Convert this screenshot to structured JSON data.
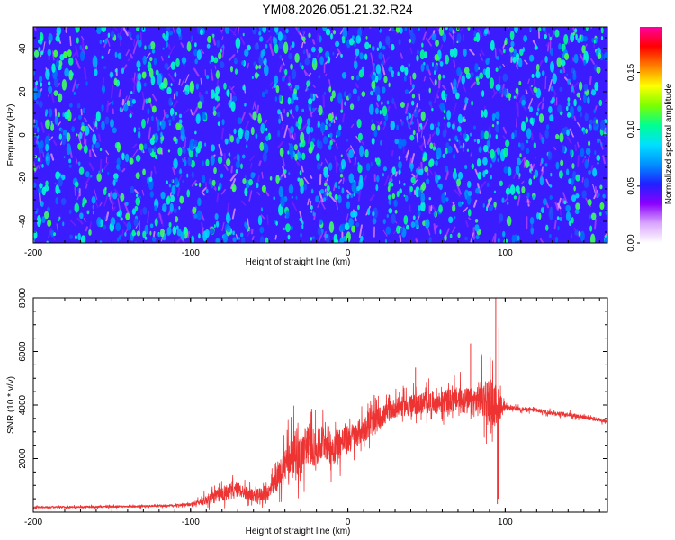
{
  "page": {
    "title": "YM08.2026.051.21.32.R24"
  },
  "chart_data": [
    {
      "type": "heatmap",
      "title": "YM08.2026.051.21.32.R24",
      "xlabel": "Height of straight line (km)",
      "ylabel": "Frequency (Hz)",
      "xlim": [
        -200,
        165
      ],
      "ylim": [
        -50,
        50
      ],
      "x_ticks": [
        -200,
        -100,
        0,
        100
      ],
      "x_tick_labels": [
        "-200",
        "-100",
        "0",
        "100"
      ],
      "y_ticks": [
        -40,
        -20,
        0,
        20,
        40
      ],
      "y_tick_labels": [
        "-40",
        "-20",
        "0",
        "20",
        "40"
      ],
      "colorbar": {
        "label": "Normalized spectral amplitude",
        "range": [
          0,
          0.19
        ],
        "ticks": [
          0,
          0.05,
          0.1,
          0.15
        ],
        "tick_labels": [
          "0.00",
          "0.05",
          "0.10",
          "0.15"
        ],
        "colors": [
          "#ffffff",
          "#d9a6ff",
          "#8a00ff",
          "#2020ff",
          "#0090ff",
          "#00e0ff",
          "#00ff90",
          "#7cff00",
          "#ffff00",
          "#ff8000",
          "#ff0000",
          "#ff00a0"
        ]
      },
      "background_color": "#3a1cff"
    },
    {
      "type": "line",
      "title": "",
      "xlabel": "Height of straight line (km)",
      "ylabel": "SNR (10 * v/v)",
      "xlim": [
        -200,
        165
      ],
      "ylim": [
        0,
        8000
      ],
      "x_ticks": [
        -200,
        -100,
        0,
        100
      ],
      "x_tick_labels": [
        "-200",
        "-100",
        "0",
        "100"
      ],
      "y_ticks": [
        2000,
        4000,
        6000,
        8000
      ],
      "y_tick_labels": [
        "2000",
        "4000",
        "6000",
        "8000"
      ],
      "line_color": "#ee3333",
      "series": [
        {
          "name": "SNR",
          "x": [
            -200,
            -180,
            -160,
            -140,
            -120,
            -100,
            -90,
            -80,
            -70,
            -60,
            -50,
            -45,
            -40,
            -35,
            -30,
            -25,
            -20,
            -15,
            -10,
            -5,
            0,
            5,
            10,
            15,
            20,
            25,
            30,
            40,
            50,
            60,
            70,
            80,
            85,
            90,
            95,
            100,
            110,
            120,
            130,
            140,
            150,
            160,
            165
          ],
          "y": [
            180,
            190,
            200,
            210,
            230,
            280,
            450,
            700,
            850,
            600,
            750,
            1200,
            1800,
            2300,
            2100,
            2600,
            2300,
            2700,
            2400,
            2600,
            2700,
            2900,
            3100,
            3300,
            3500,
            3700,
            3900,
            4000,
            4100,
            4100,
            4200,
            4100,
            4300,
            4200,
            4000,
            3900,
            3850,
            3800,
            3700,
            3650,
            3550,
            3450,
            3400
          ]
        }
      ],
      "noise_amplitude": [
        60,
        60,
        60,
        60,
        60,
        80,
        300,
        500,
        450,
        350,
        500,
        700,
        1200,
        1300,
        1400,
        1300,
        1100,
        1200,
        1100,
        1000,
        900,
        800,
        800,
        800,
        700,
        600,
        600,
        600,
        700,
        700,
        800,
        900,
        1200,
        1400,
        1200,
        150,
        120,
        120,
        120,
        120,
        120,
        120,
        120
      ],
      "spikes": [
        {
          "x": 94,
          "y": 8000
        },
        {
          "x": 95,
          "y": 300
        },
        {
          "x": 96,
          "y": 6900
        },
        {
          "x": 78,
          "y": 6300
        },
        {
          "x": 85,
          "y": 5900
        },
        {
          "x": 43,
          "y": 5400
        },
        {
          "x": 95.5,
          "y": 500
        }
      ]
    }
  ]
}
